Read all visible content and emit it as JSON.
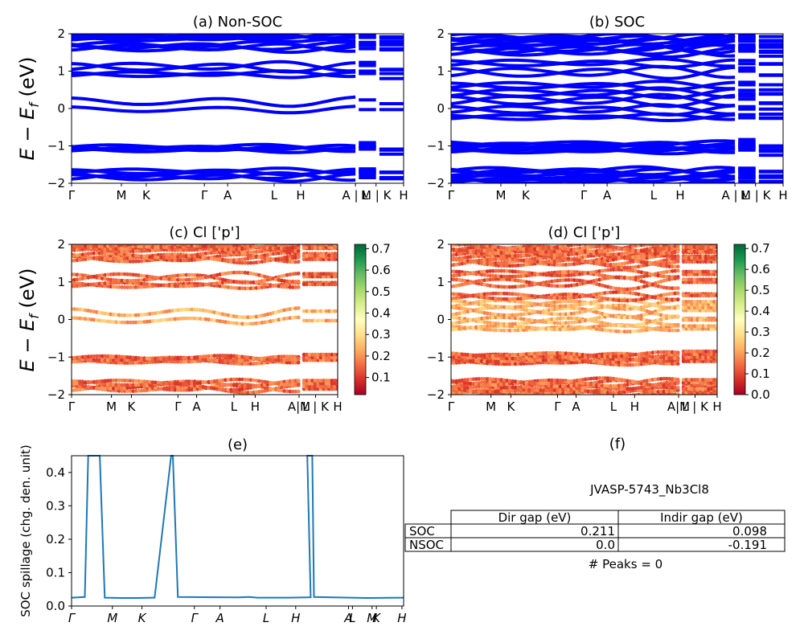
{
  "colors": {
    "band": "#0000ff",
    "spillage": "#1f77b4",
    "colormap": [
      "#a50026",
      "#d73027",
      "#f46d43",
      "#fdae61",
      "#fee08b",
      "#ffffbf",
      "#d9ef8b",
      "#a6d96a",
      "#66bd63",
      "#1a9850",
      "#006837"
    ]
  },
  "band_labels": [
    "Γ",
    "M",
    "K",
    "Γ",
    "A",
    "L",
    "H",
    "A | L",
    "M | K",
    "H"
  ],
  "band_labels_proj": [
    "Γ",
    "M",
    "K",
    "Γ",
    "A",
    "L",
    "H",
    "A|M",
    "L | K",
    "H"
  ],
  "band_label_positions": [
    0,
    0.15,
    0.225,
    0.4,
    0.47,
    0.61,
    0.69,
    0.855,
    0.917,
    1.0
  ],
  "ylabel_main": "E − E",
  "ylabel_sub": "f",
  "ylabel_unit": " (eV)",
  "yticks": [
    "−2",
    "−1",
    "0",
    "1",
    "2"
  ],
  "panels": {
    "a": {
      "title": "(a) Non-SOC"
    },
    "b": {
      "title": "(b) SOC"
    },
    "c": {
      "title": "(c)  Cl ['p']",
      "colorbar_ticks": [
        "0.1",
        "0.2",
        "0.3",
        "0.4",
        "0.5",
        "0.6",
        "0.7"
      ]
    },
    "d": {
      "title": "(d) Cl ['p']",
      "colorbar_ticks": [
        "0.0",
        "0.1",
        "0.2",
        "0.3",
        "0.4",
        "0.5",
        "0.6",
        "0.7"
      ]
    },
    "e": {
      "title": "(e)",
      "ylabel": "SOC spillage (chg. den. unit)",
      "yticks": [
        "0.0",
        "0.1",
        "0.2",
        "0.3",
        "0.4"
      ]
    },
    "f": {
      "title": "(f)"
    }
  },
  "chart_data": [
    {
      "type": "line",
      "title": "(a) Non-SOC",
      "ylabel": "E − E_f (eV)",
      "ylim": [
        -2,
        2
      ],
      "x_tick_labels": [
        "Γ",
        "M",
        "K",
        "Γ",
        "A",
        "L",
        "H",
        "A | L",
        "M | K",
        "H"
      ],
      "band_count_approx": 18,
      "band_energy_ranges_eV": [
        [
          -1.9,
          -1.6
        ],
        [
          -1.2,
          -1.0
        ],
        [
          -0.1,
          0.3
        ],
        [
          0.8,
          1.2
        ],
        [
          1.5,
          2.0
        ]
      ]
    },
    {
      "type": "line",
      "title": "(b) SOC",
      "ylabel": "",
      "ylim": [
        -2,
        2
      ],
      "x_tick_labels": [
        "Γ",
        "M",
        "K",
        "Γ",
        "A",
        "L",
        "H",
        "A | L",
        "M | K",
        "H"
      ],
      "band_count_approx": 36,
      "band_energy_ranges_eV": [
        [
          -2.0,
          -1.6
        ],
        [
          -1.3,
          -0.9
        ],
        [
          -0.3,
          0.5
        ],
        [
          0.5,
          1.3
        ],
        [
          1.3,
          2.0
        ]
      ]
    },
    {
      "type": "scatter",
      "title": "(c)  Cl ['p']",
      "ylabel": "E − E_f (eV)",
      "ylim": [
        -2,
        2
      ],
      "colorbar_range": [
        0.02,
        0.72
      ]
    },
    {
      "type": "scatter",
      "title": "(d) Cl ['p']",
      "ylabel": "",
      "ylim": [
        -2,
        2
      ],
      "colorbar_range": [
        0.0,
        0.72
      ]
    },
    {
      "type": "line",
      "title": "(e)",
      "ylabel": "SOC spillage (chg. den. unit)",
      "ylim": [
        0,
        0.45
      ],
      "x_tick_labels": [
        "Γ",
        "M",
        "K",
        "Γ",
        "A",
        "L",
        "H",
        "A",
        "L",
        "M",
        "K",
        "H"
      ],
      "x": [
        0,
        0.04,
        0.05,
        0.085,
        0.1,
        0.15,
        0.2,
        0.245,
        0.25,
        0.3,
        0.3,
        0.305,
        0.32,
        0.5,
        0.535,
        0.56,
        0.65,
        0.72,
        0.71,
        0.725,
        0.73,
        0.84,
        0.89,
        1.0
      ],
      "y": [
        0.025,
        0.027,
        0.45,
        0.45,
        0.025,
        0.024,
        0.024,
        0.025,
        0.025,
        0.45,
        0.45,
        0.45,
        0.027,
        0.026,
        0.027,
        0.025,
        0.025,
        0.026,
        0.45,
        0.45,
        0.027,
        0.025,
        0.024,
        0.025
      ]
    },
    {
      "type": "table",
      "title": "(f)",
      "caption": "JVASP-5743_Nb3Cl8",
      "columns": [
        "",
        "Dir gap (eV)",
        "Indir gap (eV)"
      ],
      "rows": [
        [
          "SOC",
          "0.211",
          "0.098"
        ],
        [
          "NSOC",
          "0.0",
          "-0.191"
        ]
      ],
      "footer": "# Peaks = 0"
    }
  ]
}
